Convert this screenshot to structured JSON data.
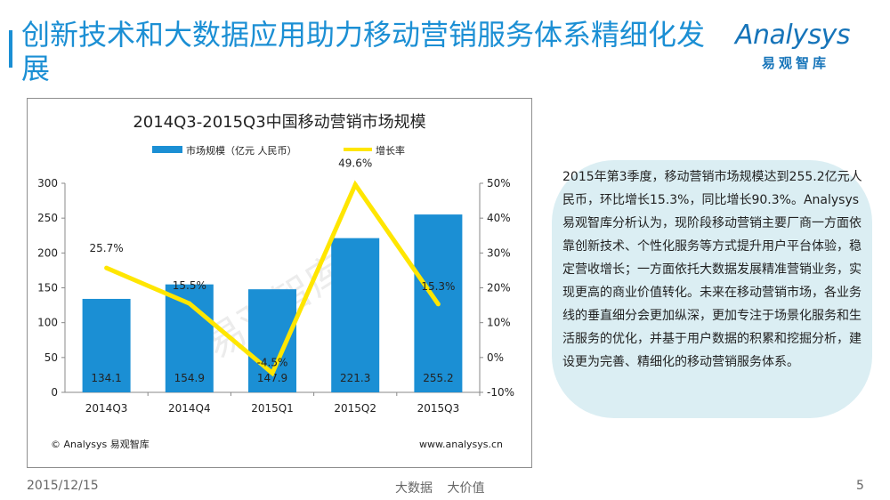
{
  "slide": {
    "title": "创新技术和大数据应用助力移动营销服务体系精细化发展",
    "logo_name": "Analysys",
    "logo_cn": "易观智库",
    "note": "2015年第3季度，移动营销市场规模达到255.2亿元人民币，环比增长15.3%，同比增长90.3%。Analysys易观智库分析认为，现阶段移动营销主要厂商一方面依靠创新技术、个性化服务等方式提升用户平台体验，稳定营收增长；一方面依托大数据发展精准营销业务，实现更高的商业价值转化。未来在移动营销市场，各业务线的垂直细分会更加纵深，更加专注于场景化服务和生活服务的优化，并基于用户数据的积累和挖掘分析，建设更为完善、精细化的移动营销服务体系。",
    "footer_date": "2015/12/15",
    "footer_mid": "大数据 大价值",
    "page": "5"
  },
  "chart_data": {
    "type": "bar",
    "title": "2014Q3-2015Q3中国移动营销市场规模",
    "categories": [
      "2014Q3",
      "2014Q4",
      "2015Q1",
      "2015Q2",
      "2015Q3"
    ],
    "series": [
      {
        "name": "市场规模（亿元 人民币）",
        "type": "bar",
        "axis": "left",
        "values": [
          134.1,
          154.9,
          147.9,
          221.3,
          255.2
        ],
        "labels": [
          "134.1",
          "154.9",
          "147.9",
          "221.3",
          "255.2"
        ],
        "color": "#1b8fd4"
      },
      {
        "name": "增长率",
        "type": "line",
        "axis": "right",
        "values": [
          25.7,
          15.5,
          -4.5,
          49.6,
          15.3
        ],
        "labels": [
          "25.7%",
          "15.5%",
          "-4.5%",
          "49.6%",
          "15.3%"
        ],
        "color": "#ffe600"
      }
    ],
    "y_left": {
      "ylim": [
        0,
        300
      ],
      "ticks": [
        "0",
        "50",
        "100",
        "150",
        "200",
        "250",
        "300"
      ]
    },
    "y_right": {
      "ylim": [
        -10,
        50
      ],
      "ticks": [
        "-10%",
        "0%",
        "10%",
        "20%",
        "30%",
        "40%",
        "50%"
      ]
    },
    "legend": "top",
    "grid": false,
    "watermark": "易观智库",
    "source_left": "© Analysys 易观智库",
    "source_right": "www.analysys.cn"
  }
}
